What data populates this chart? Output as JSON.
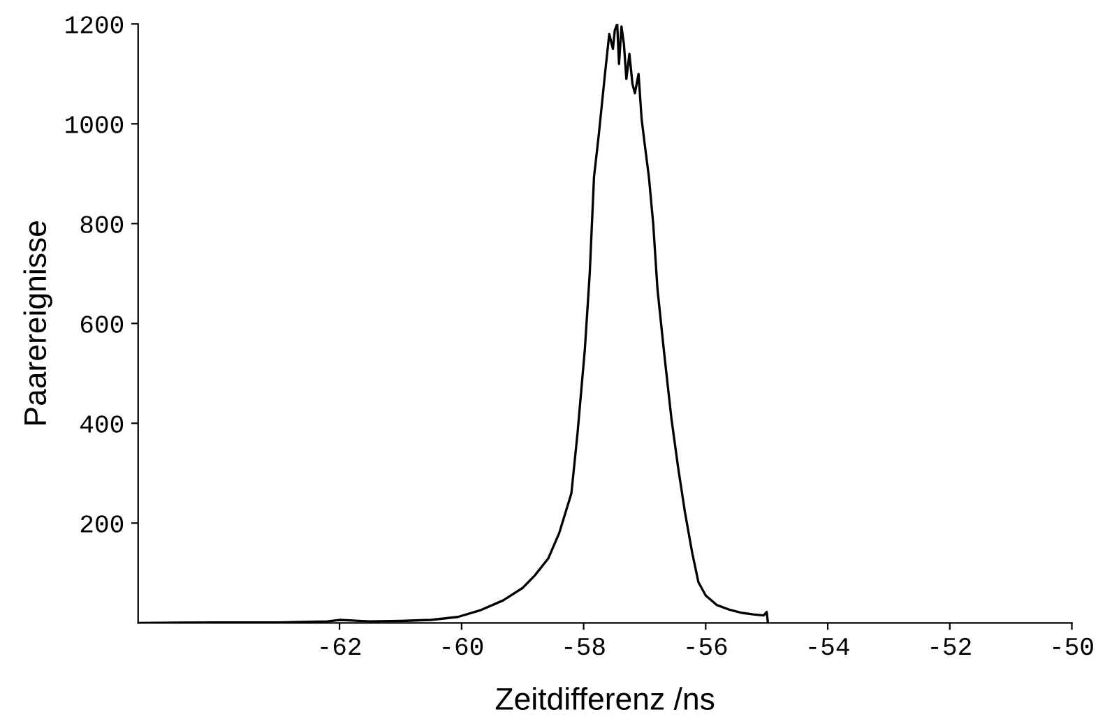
{
  "chart_data": {
    "type": "line",
    "xlabel": "Zeitdifferenz /ns",
    "ylabel": "Paarereignisse",
    "x": [
      -65.3,
      -64.0,
      -63.0,
      -62.2,
      -62.0,
      -61.5,
      -61.0,
      -60.5,
      -60.06,
      -59.7,
      -59.32,
      -59.0,
      -58.8,
      -58.58,
      -58.4,
      -58.2,
      -58.1,
      -57.98,
      -57.9,
      -57.83,
      -57.75,
      -57.65,
      -57.58,
      -57.52,
      -57.49,
      -57.45,
      -57.42,
      -57.38,
      -57.34,
      -57.3,
      -57.25,
      -57.2,
      -57.16,
      -57.1,
      -57.05,
      -57.0,
      -56.93,
      -56.86,
      -56.79,
      -56.68,
      -56.56,
      -56.45,
      -56.34,
      -56.22,
      -56.12,
      -56.0,
      -55.82,
      -55.6,
      -55.4,
      -55.22,
      -55.05,
      -55.0,
      -54.98
    ],
    "values": [
      0,
      1,
      1,
      3,
      6,
      3,
      4,
      6,
      12,
      25,
      45,
      70,
      95,
      129,
      180,
      260,
      380,
      548,
      700,
      893,
      980,
      1100,
      1180,
      1150,
      1187,
      1200,
      1120,
      1195,
      1160,
      1090,
      1140,
      1080,
      1061,
      1100,
      1010,
      960,
      893,
      800,
      669,
      540,
      408,
      310,
      222,
      140,
      82,
      55,
      36,
      26,
      20,
      17,
      15,
      22,
      0
    ],
    "color": "#000000",
    "marker": "none",
    "line_style": "solid",
    "grid": false,
    "legend": false,
    "xlim": [
      -65.3,
      -50
    ],
    "ylim": [
      0,
      1200
    ],
    "xticks": [
      -62,
      -60,
      -58,
      -56,
      -54,
      -52,
      -50
    ],
    "yticks": [
      200,
      400,
      600,
      800,
      1000,
      1200
    ]
  }
}
